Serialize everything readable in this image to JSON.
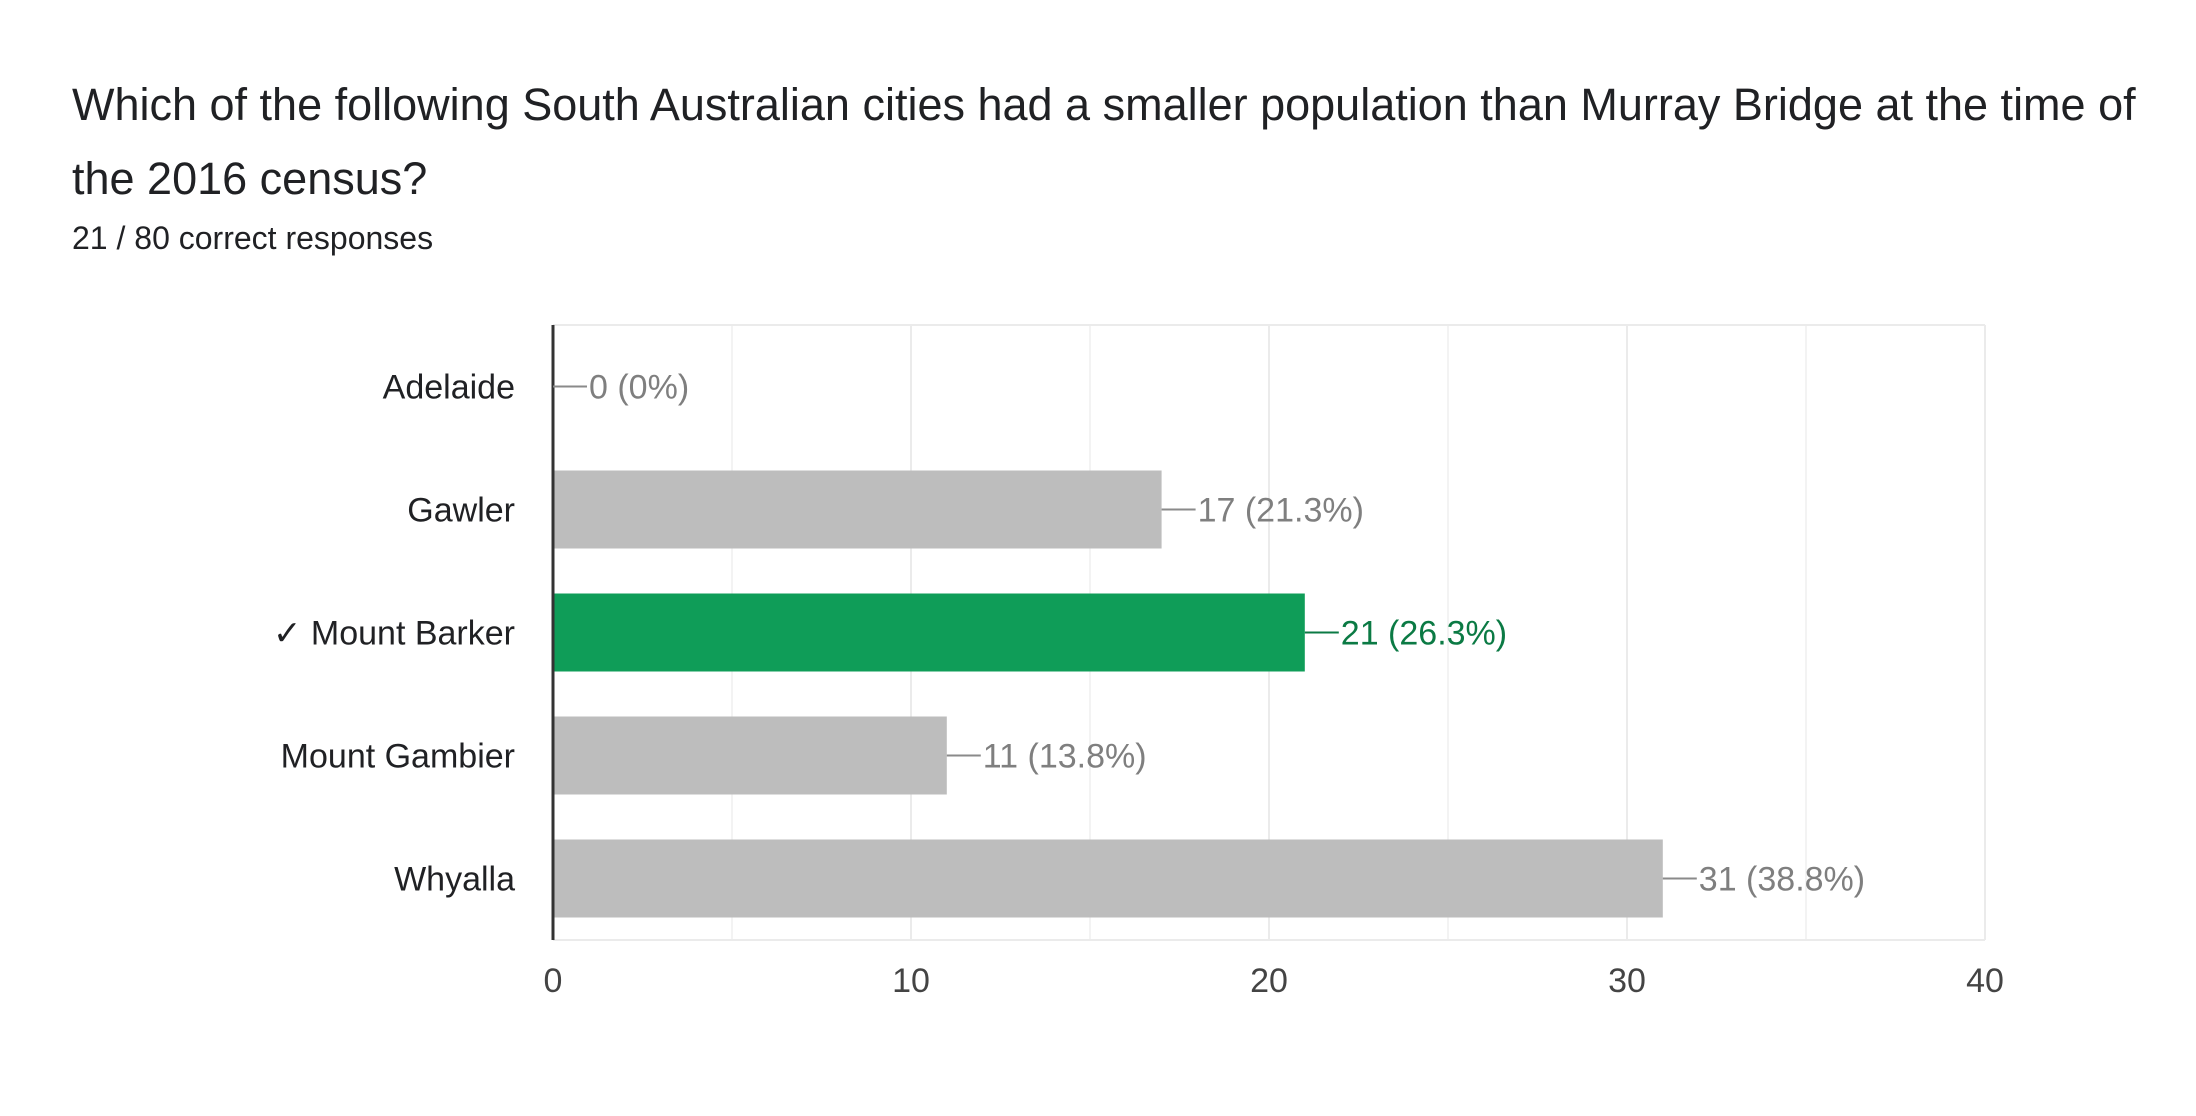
{
  "question": {
    "title": "Which of the following South Australian cities had a smaller population than Murray Bridge at the time of the 2016 census?",
    "score": "21 / 80 correct responses"
  },
  "colors": {
    "correct_bar": "#0f9d58",
    "correct_label": "#0b7a44",
    "incorrect_bar": "#bdbdbd",
    "incorrect_label": "#7f7f7f",
    "gridline": "#ebebeb",
    "axis": "#333333"
  },
  "chart_data": {
    "type": "bar",
    "orientation": "horizontal",
    "categories": [
      "Adelaide",
      "Gawler",
      "✓ Mount Barker",
      "Mount Gambier",
      "Whyalla"
    ],
    "values": [
      0,
      17,
      21,
      11,
      31
    ],
    "data_labels": [
      "0 (0%)",
      "17 (21.3%)",
      "21 (26.3%)",
      "11 (13.8%)",
      "31 (38.8%)"
    ],
    "correct": [
      false,
      false,
      true,
      false,
      false
    ],
    "xlim": [
      0,
      40
    ],
    "xticks": [
      0,
      10,
      20,
      30,
      40
    ],
    "grid": true,
    "legend": "none"
  }
}
